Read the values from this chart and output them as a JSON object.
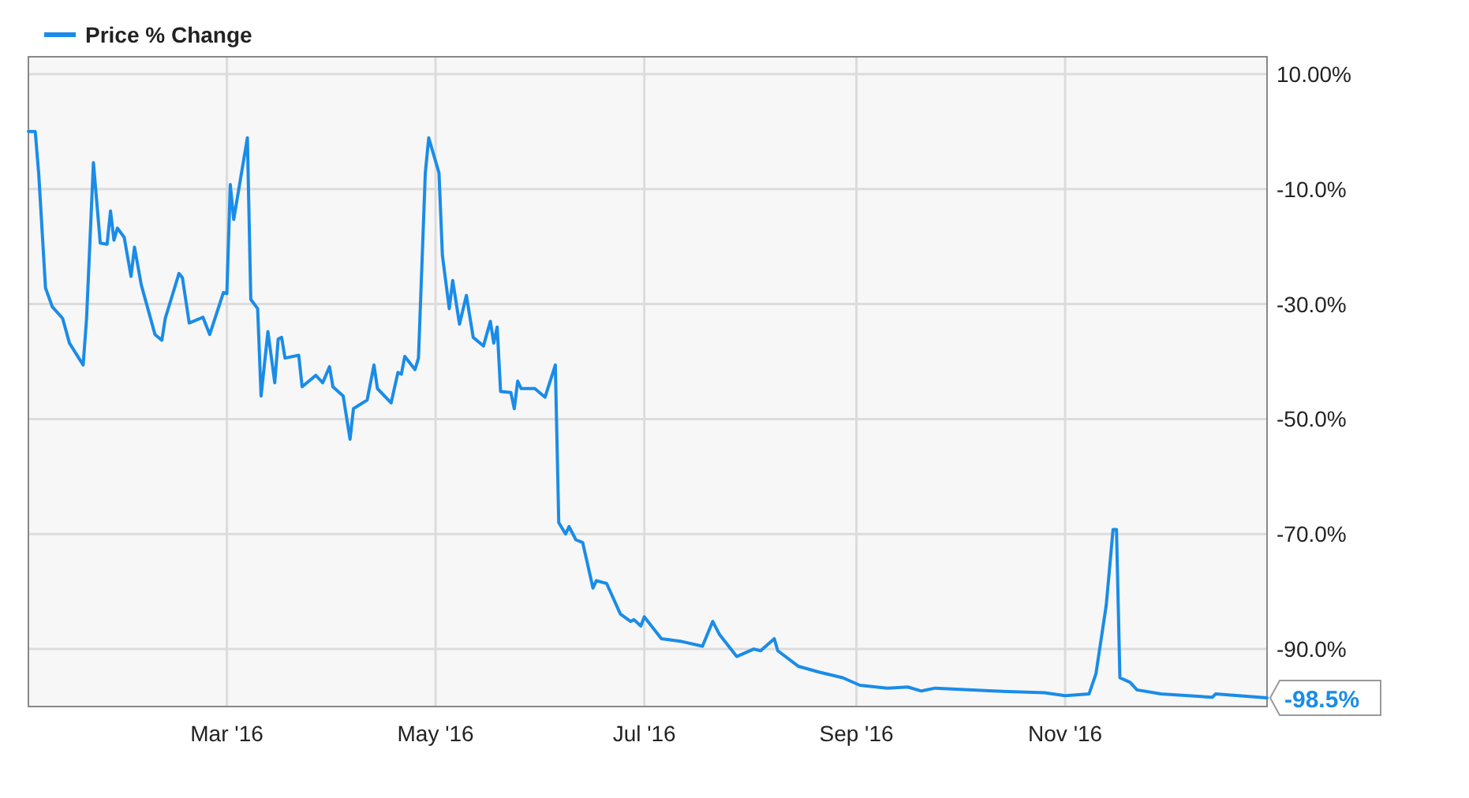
{
  "chart_data": {
    "type": "line",
    "legend": "top left",
    "grid": true,
    "marker": "none",
    "line_style": "solid",
    "xlim": [
      "2016-01-03",
      "2016-12-30"
    ],
    "xticks": [
      {
        "value": "2016-03-01",
        "label": "Mar '16"
      },
      {
        "value": "2016-05-01",
        "label": "May '16"
      },
      {
        "value": "2016-07-01",
        "label": "Jul '16"
      },
      {
        "value": "2016-09-01",
        "label": "Sep '16"
      },
      {
        "value": "2016-11-01",
        "label": "Nov '16"
      }
    ],
    "ylim": [
      -100,
      13
    ],
    "yticks": [
      {
        "value": 10,
        "label": "10.00%"
      },
      {
        "value": -10,
        "label": "-10.0%"
      },
      {
        "value": -30,
        "label": "-30.0%"
      },
      {
        "value": -50,
        "label": "-50.0%"
      },
      {
        "value": -70,
        "label": "-70.0%"
      },
      {
        "value": -90,
        "label": "-90.0%"
      }
    ],
    "annotations": [
      {
        "text": "-98.5%",
        "x": "2016-12-30",
        "y": -98.5
      }
    ],
    "series": [
      {
        "name": "Price % Change",
        "color": "#1a8ce8",
        "x": [
          "2016-01-03",
          "2016-01-05",
          "2016-01-06",
          "2016-01-08",
          "2016-01-10",
          "2016-01-13",
          "2016-01-15",
          "2016-01-19",
          "2016-01-20",
          "2016-01-22",
          "2016-01-24",
          "2016-01-26",
          "2016-01-27",
          "2016-01-28",
          "2016-01-29",
          "2016-01-31",
          "2016-02-02",
          "2016-02-03",
          "2016-02-05",
          "2016-02-07",
          "2016-02-09",
          "2016-02-11",
          "2016-02-12",
          "2016-02-16",
          "2016-02-17",
          "2016-02-19",
          "2016-02-23",
          "2016-02-25",
          "2016-02-29",
          "2016-03-01",
          "2016-03-02",
          "2016-03-03",
          "2016-03-07",
          "2016-03-08",
          "2016-03-10",
          "2016-03-11",
          "2016-03-13",
          "2016-03-15",
          "2016-03-16",
          "2016-03-17",
          "2016-03-18",
          "2016-03-22",
          "2016-03-23",
          "2016-03-27",
          "2016-03-29",
          "2016-03-31",
          "2016-04-01",
          "2016-04-04",
          "2016-04-06",
          "2016-04-07",
          "2016-04-11",
          "2016-04-13",
          "2016-04-14",
          "2016-04-18",
          "2016-04-20",
          "2016-04-21",
          "2016-04-22",
          "2016-04-25",
          "2016-04-26",
          "2016-04-28",
          "2016-04-29",
          "2016-05-02",
          "2016-05-03",
          "2016-05-05",
          "2016-05-06",
          "2016-05-08",
          "2016-05-10",
          "2016-05-12",
          "2016-05-15",
          "2016-05-17",
          "2016-05-18",
          "2016-05-19",
          "2016-05-20",
          "2016-05-23",
          "2016-05-24",
          "2016-05-25",
          "2016-05-26",
          "2016-05-30",
          "2016-06-02",
          "2016-06-05",
          "2016-06-06",
          "2016-06-08",
          "2016-06-09",
          "2016-06-11",
          "2016-06-13",
          "2016-06-16",
          "2016-06-17",
          "2016-06-20",
          "2016-06-24",
          "2016-06-27",
          "2016-06-28",
          "2016-06-30",
          "2016-07-01",
          "2016-07-06",
          "2016-07-12",
          "2016-07-18",
          "2016-07-21",
          "2016-07-23",
          "2016-07-28",
          "2016-08-02",
          "2016-08-04",
          "2016-08-08",
          "2016-08-09",
          "2016-08-15",
          "2016-08-21",
          "2016-08-28",
          "2016-09-02",
          "2016-09-10",
          "2016-09-16",
          "2016-09-20",
          "2016-09-24",
          "2016-10-11",
          "2016-10-26",
          "2016-11-01",
          "2016-11-08",
          "2016-11-10",
          "2016-11-13",
          "2016-11-15",
          "2016-11-16",
          "2016-11-17",
          "2016-11-20",
          "2016-11-22",
          "2016-11-29",
          "2016-12-14",
          "2016-12-15",
          "2016-12-30"
        ],
        "values": [
          0,
          0,
          -7.2,
          -27.2,
          -30.5,
          -32.5,
          -36.8,
          -40.6,
          -32.5,
          -5.4,
          -19.4,
          -19.6,
          -13.8,
          -18.9,
          -16.8,
          -18.4,
          -25.2,
          -20.1,
          -26.7,
          -31,
          -35.3,
          -36.3,
          -32.5,
          -24.7,
          -25.4,
          -33.3,
          -32.3,
          -35.3,
          -28,
          -28.2,
          -9.2,
          -15.3,
          -1.1,
          -29.2,
          -30.8,
          -46,
          -34.8,
          -43.7,
          -36.1,
          -35.8,
          -39.4,
          -38.9,
          -44.4,
          -42.4,
          -43.7,
          -40.9,
          -44.4,
          -46,
          -53.5,
          -48.2,
          -46.7,
          -40.6,
          -44.7,
          -47.2,
          -41.9,
          -42.2,
          -39.1,
          -41.4,
          -39.4,
          -7.2,
          -1.1,
          -7.2,
          -21.6,
          -30.8,
          -25.9,
          -33.5,
          -28.5,
          -35.8,
          -37.3,
          -33,
          -36.8,
          -34,
          -45.2,
          -45.4,
          -48.2,
          -43.4,
          -44.7,
          -44.7,
          -46.2,
          -40.6,
          -68,
          -70,
          -68.7,
          -71,
          -71.5,
          -79.4,
          -78.1,
          -78.6,
          -83.9,
          -85.2,
          -84.9,
          -86,
          -84.4,
          -88.2,
          -88.7,
          -89.5,
          -85.2,
          -87.5,
          -91.3,
          -90,
          -90.3,
          -88.2,
          -90.3,
          -93,
          -94,
          -95,
          -96.3,
          -96.8,
          -96.6,
          -97.3,
          -96.8,
          -97.3,
          -97.6,
          -98.1,
          -97.8,
          -94.3,
          -82.4,
          -69.2,
          -69.2,
          -95,
          -95.8,
          -97.1,
          -97.8,
          -98.4,
          -97.8,
          -98.5
        ]
      }
    ]
  }
}
